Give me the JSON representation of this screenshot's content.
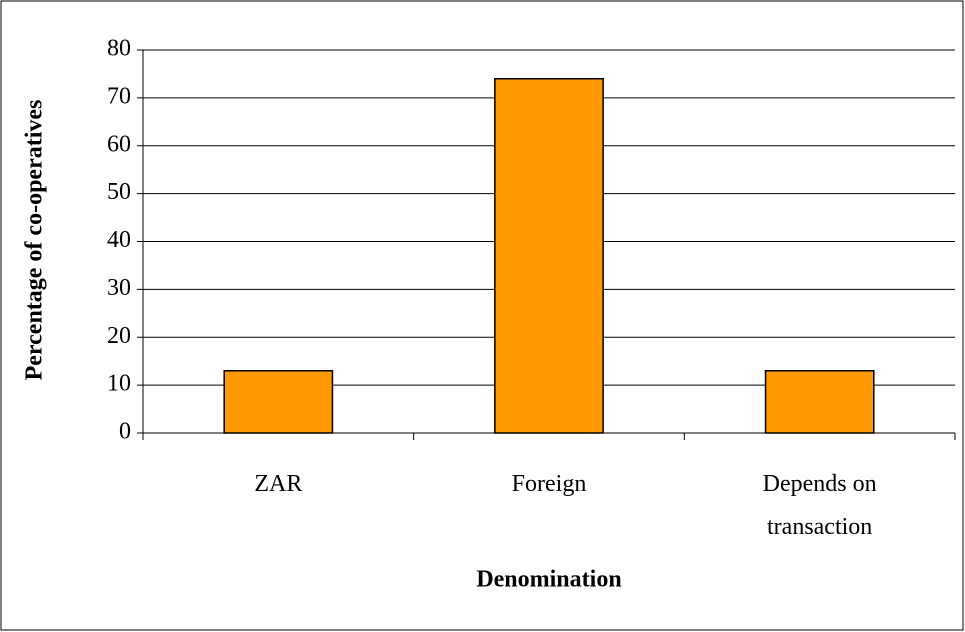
{
  "chart_data": {
    "type": "bar",
    "x_label": "Denomination",
    "y_label": "Percentage of co-operatives",
    "categories": [
      "ZAR",
      "Foreign",
      "Depends on transaction"
    ],
    "values": [
      13,
      74,
      13
    ],
    "color": "#ff9900",
    "ylim": [
      0,
      80
    ],
    "yticks": [
      0,
      10,
      20,
      30,
      40,
      50,
      60,
      70,
      80
    ],
    "grid": true
  }
}
